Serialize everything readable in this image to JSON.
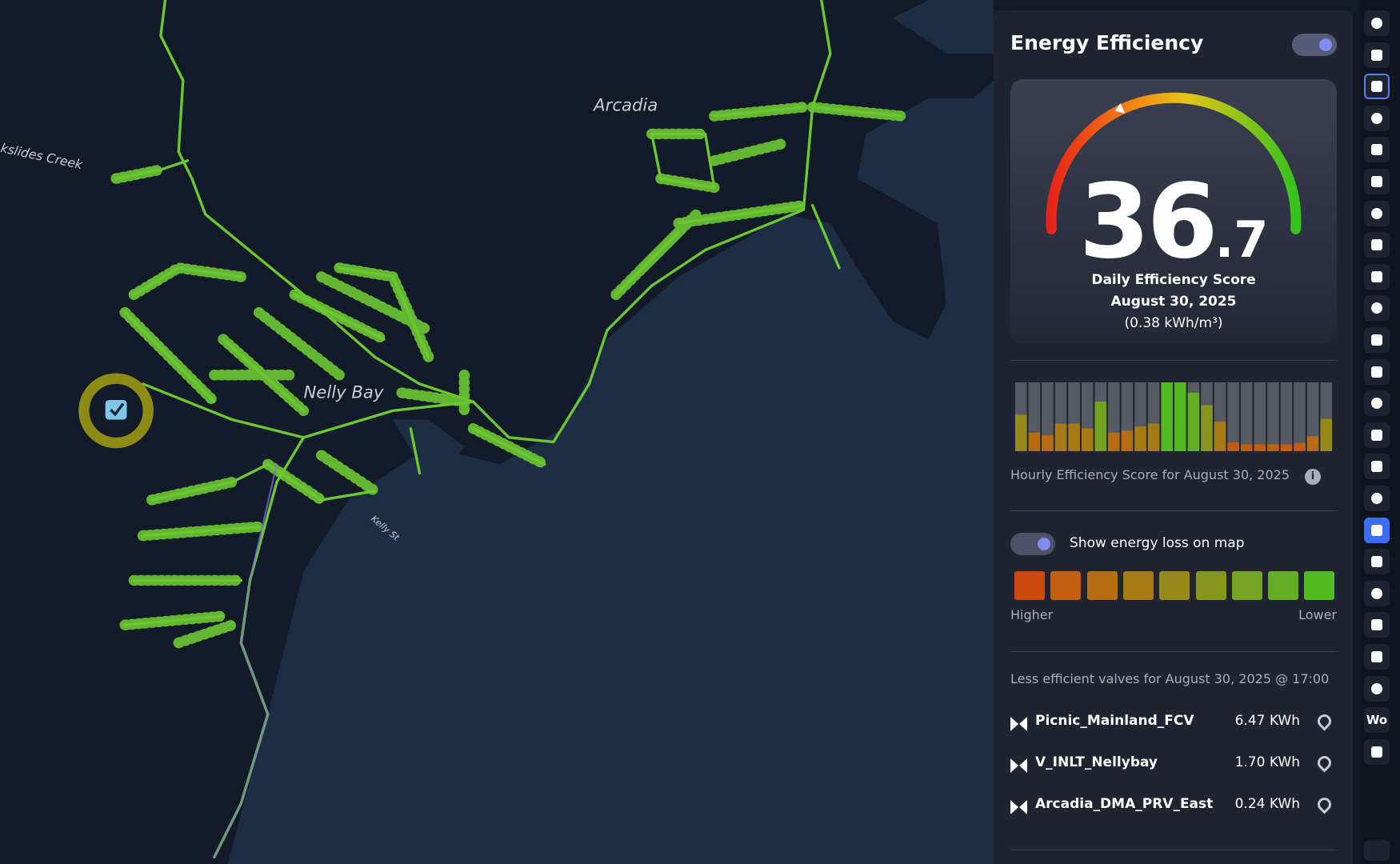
{
  "map": {
    "labels": [
      "Arcadia",
      "Nelly Bay",
      "Kelly St",
      "kslides Creek"
    ]
  },
  "panel": {
    "title": "Energy Efficiency",
    "score": {
      "whole": "36",
      "fraction": ".7",
      "gauge_value": 36.7,
      "gauge_range": [
        0,
        100
      ]
    },
    "score_title": "Daily Efficiency Score",
    "score_date": "August 30, 2025",
    "score_unit": "(0.38 kWh/m³)",
    "hourly": {
      "values": [
        53,
        27,
        23,
        40,
        40,
        33,
        72,
        27,
        30,
        36,
        40,
        100,
        100,
        85,
        67,
        43,
        13,
        10,
        10,
        10,
        10,
        12,
        22,
        47
      ],
      "range": [
        0,
        100
      ]
    },
    "hourly_caption": "Hourly Efficiency Score for August 30, 2025",
    "toggle_label": "Show energy loss on map",
    "legend": {
      "colors": [
        "#cc4a10",
        "#c25e10",
        "#b56c12",
        "#a67a16",
        "#97881a",
        "#86951e",
        "#74a222",
        "#62ae24",
        "#52bb22"
      ],
      "low_label": "Higher",
      "high_label": "Lower"
    },
    "valves_title": "Less efficient valves for August 30, 2025 @ 17:00",
    "valves": [
      {
        "name": "Picnic_Mainland_FCV",
        "value": "6.47 KWh"
      },
      {
        "name": "V_INLT_Nellybay",
        "value": "1.70 KWh"
      },
      {
        "name": "Arcadia_DMA_PRV_East",
        "value": "0.24 KWh"
      }
    ]
  },
  "toolbar": {
    "text_button": "Wo"
  }
}
